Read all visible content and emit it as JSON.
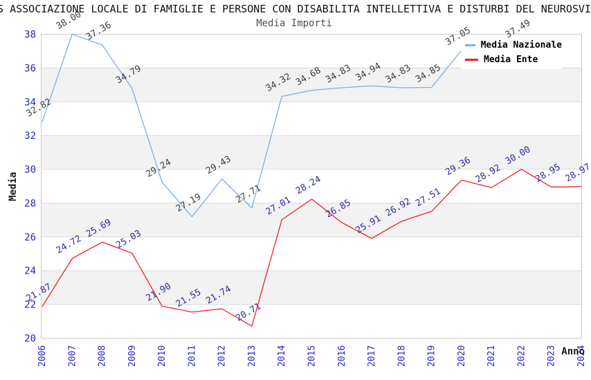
{
  "header": {
    "title": "S ASSOCIAZIONE LOCALE DI FAMIGLIE E PERSONE CON DISABILITA INTELLETTIVA E DISTURBI DEL NEUROSVI",
    "subtitle": "Media Importi"
  },
  "chart_data": {
    "type": "line",
    "title": "Media Importi",
    "xlabel": "Anno",
    "ylabel": "Media",
    "x": [
      2006,
      2007,
      2008,
      2009,
      2010,
      2011,
      2012,
      2013,
      2014,
      2015,
      2016,
      2017,
      2018,
      2019,
      2020,
      2021,
      2022,
      2023,
      2024
    ],
    "ylim": [
      20,
      38
    ],
    "ytick_step": 2,
    "grid": true,
    "legend_position": "top-right",
    "styles": {
      "band_color": "#f2f2f2",
      "grid_color": "#d9d9d9",
      "border_color": "#c8c8c8",
      "tick_text_color": "#2323cf"
    },
    "series": [
      {
        "name": "Media Nazionale",
        "color": "#7cb0e6",
        "label_color": "#3d3d3d",
        "values": [
          32.82,
          38.0,
          37.36,
          34.79,
          29.24,
          27.19,
          29.43,
          27.71,
          34.32,
          34.68,
          34.83,
          34.94,
          34.83,
          34.85,
          37.05,
          null,
          37.49,
          null,
          null
        ]
      },
      {
        "name": "Media Ente",
        "color": "#ee2222",
        "label_color": "#2b2ba0",
        "values": [
          21.87,
          24.72,
          25.69,
          25.03,
          21.9,
          21.55,
          21.74,
          20.71,
          27.01,
          28.24,
          26.85,
          25.91,
          26.92,
          27.51,
          29.36,
          28.92,
          30.0,
          28.95,
          28.97
        ]
      }
    ]
  }
}
